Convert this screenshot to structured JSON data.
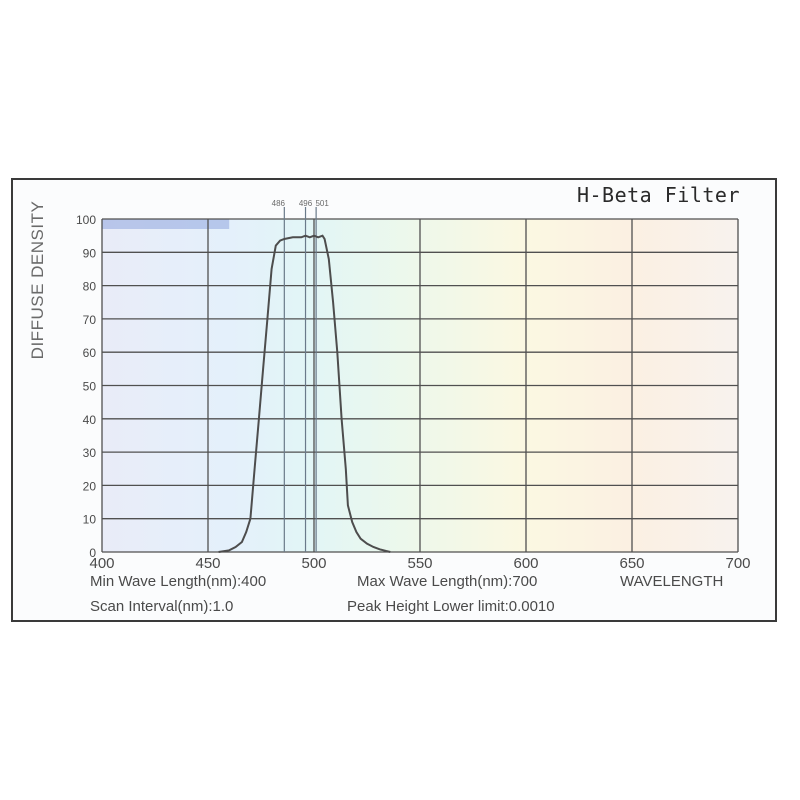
{
  "chart_data": {
    "type": "line",
    "title": "H-Beta Filter",
    "ylabel": "DIFFUSE DENSITY",
    "xlabel": "WAVELENGTH",
    "xlim": [
      400,
      700
    ],
    "ylim": [
      0,
      100
    ],
    "x_ticks": [
      400,
      450,
      500,
      550,
      600,
      650,
      700
    ],
    "x_tick_labels": [
      "400",
      "450",
      "500",
      "550",
      "600",
      "650",
      "700"
    ],
    "y_ticks": [
      0,
      10,
      20,
      30,
      40,
      50,
      60,
      70,
      80,
      90,
      100
    ],
    "y_tick_labels": [
      "0",
      "10",
      "20",
      "30",
      "40",
      "50",
      "60",
      "70",
      "80",
      "90",
      "100"
    ],
    "grid": true,
    "series": [
      {
        "x": [
          455,
          460,
          463,
          466,
          468,
          470,
          472,
          474,
          476,
          478,
          480,
          482,
          484,
          486,
          490,
          494,
          496,
          498,
          500,
          502,
          504,
          505,
          507,
          509,
          511,
          513,
          515,
          516,
          518,
          520,
          522,
          525,
          528,
          531,
          534,
          536
        ],
        "y": [
          0,
          0.5,
          1.5,
          3,
          6,
          10,
          25,
          40,
          55,
          70,
          85,
          92,
          93.5,
          94,
          94.5,
          94.5,
          95,
          94.5,
          95,
          94.5,
          95,
          94,
          88,
          75,
          60,
          40,
          25,
          14,
          9,
          6,
          4,
          2.5,
          1.5,
          0.8,
          0.3,
          0
        ]
      }
    ],
    "marker_lines": [
      {
        "x": 486,
        "label": "486"
      },
      {
        "x": 496,
        "label": "496"
      },
      {
        "x": 501,
        "label": "501"
      }
    ],
    "color": "#4d4d4d"
  },
  "info": {
    "min_wave": "Min Wave Length(nm):400",
    "max_wave": "Max Wave Length(nm):700",
    "scan_interval": "Scan Interval(nm):1.0",
    "peak_height": "Peak Height Lower limit:0.0010"
  }
}
